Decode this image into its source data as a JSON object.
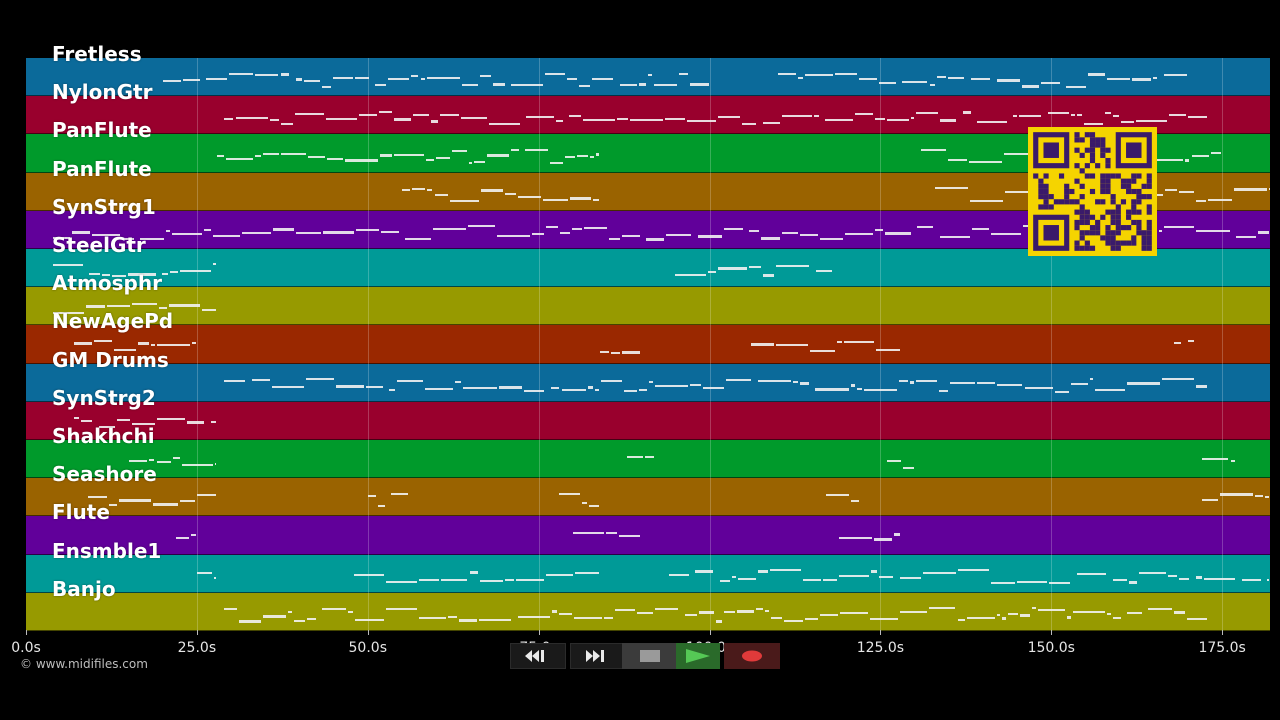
{
  "tracks": [
    {
      "name": "Fretless",
      "color": "#0b6a9a"
    },
    {
      "name": "NylonGtr",
      "color": "#99002d"
    },
    {
      "name": "PanFlute",
      "color": "#009a2b"
    },
    {
      "name": "PanFlute",
      "color": "#9a6300"
    },
    {
      "name": "SynStrg1",
      "color": "#61009a"
    },
    {
      "name": "SteelGtr",
      "color": "#009a97"
    },
    {
      "name": "Atmosphr",
      "color": "#979a00"
    },
    {
      "name": "NewAgePd",
      "color": "#9a2800"
    },
    {
      "name": "GM Drums",
      "color": "#0b6a9a"
    },
    {
      "name": "SynStrg2",
      "color": "#99002d"
    },
    {
      "name": "Shakhchi",
      "color": "#009a2b"
    },
    {
      "name": "Seashore",
      "color": "#9a6300"
    },
    {
      "name": "Flute",
      "color": "#61009a"
    },
    {
      "name": "Ensmble1",
      "color": "#009a97"
    },
    {
      "name": "Banjo",
      "color": "#979a00"
    }
  ],
  "time_axis": {
    "ticks": [
      {
        "t": 0,
        "label": "0.0s"
      },
      {
        "t": 25,
        "label": "25.0s"
      },
      {
        "t": 50,
        "label": "50.0s"
      },
      {
        "t": 75,
        "label": "75.0s"
      },
      {
        "t": 100,
        "label": "100.0s"
      },
      {
        "t": 125,
        "label": "125.0s"
      },
      {
        "t": 150,
        "label": "150.0s"
      },
      {
        "t": 175,
        "label": "175.0s"
      }
    ],
    "max_seconds": 182
  },
  "copyright": "© www.midifiles.com",
  "qr_color": "#f5d400",
  "qr_dark": "#3a1a6a",
  "transport": {
    "rewind_icon": "rewind-icon",
    "fast_forward_icon": "fast-forward-icon",
    "stop_icon": "stop-icon",
    "play_icon": "play-icon",
    "record_icon": "record-icon"
  }
}
